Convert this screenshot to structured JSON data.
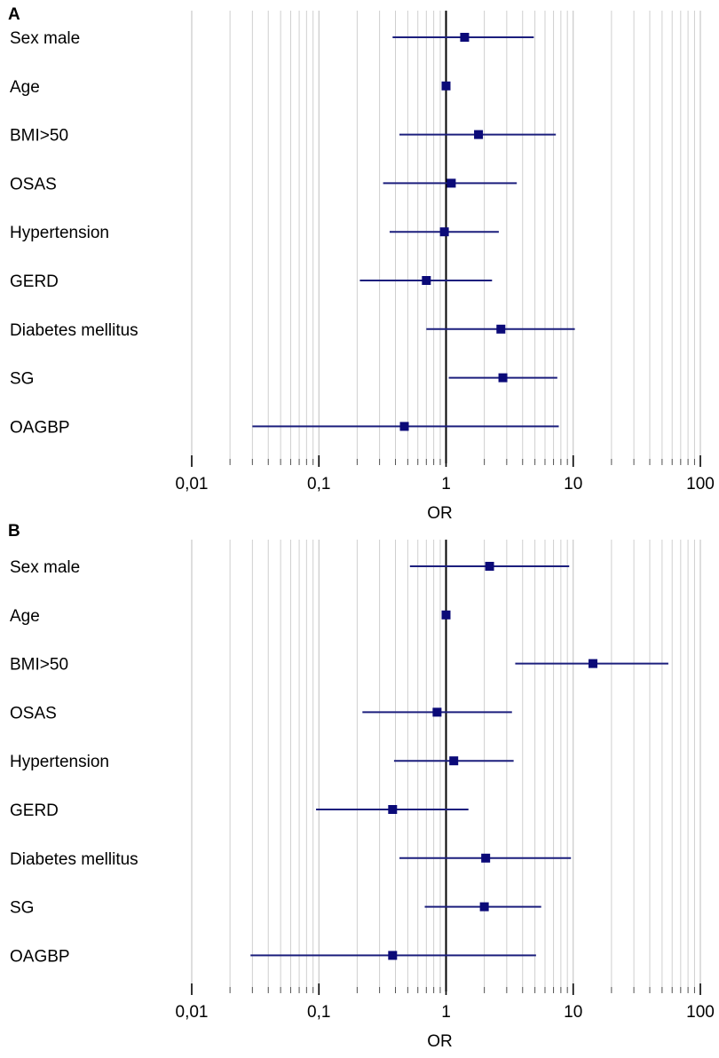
{
  "colors": {
    "marker": "#0b0a78",
    "ci_line": "#1c1f7d",
    "grid": "#cfcfcf",
    "ref_line": "#000000",
    "axis": "#000000"
  },
  "chart_data": [
    {
      "type": "forest",
      "panel": "A",
      "xscale": "log",
      "xlim": [
        0.01,
        100
      ],
      "xlabel": "OR",
      "xticks": [
        0.01,
        0.1,
        1,
        10,
        100
      ],
      "xtick_labels": [
        "0,01",
        "0,1",
        "1",
        "10",
        "100"
      ],
      "reference_line": 1,
      "grid": true,
      "rows": [
        {
          "label": "Sex male",
          "or": 1.4,
          "lower": 0.38,
          "upper": 4.9
        },
        {
          "label": "Age",
          "or": 1.0,
          "lower": 0.98,
          "upper": 1.03
        },
        {
          "label": "BMI>50",
          "or": 1.8,
          "lower": 0.43,
          "upper": 7.3
        },
        {
          "label": "OSAS",
          "or": 1.1,
          "lower": 0.32,
          "upper": 3.6
        },
        {
          "label": "Hypertension",
          "or": 0.97,
          "lower": 0.36,
          "upper": 2.6
        },
        {
          "label": "GERD",
          "or": 0.7,
          "lower": 0.21,
          "upper": 2.3
        },
        {
          "label": "Diabetes mellitus",
          "or": 2.7,
          "lower": 0.7,
          "upper": 10.3
        },
        {
          "label": "SG",
          "or": 2.8,
          "lower": 1.05,
          "upper": 7.5
        },
        {
          "label": "OAGBP",
          "or": 0.47,
          "lower": 0.03,
          "upper": 7.7
        }
      ]
    },
    {
      "type": "forest",
      "panel": "B",
      "xscale": "log",
      "xlim": [
        0.01,
        100
      ],
      "xlabel": "OR",
      "xticks": [
        0.01,
        0.1,
        1,
        10,
        100
      ],
      "xtick_labels": [
        "0,01",
        "0,1",
        "1",
        "10",
        "100"
      ],
      "reference_line": 1,
      "grid": true,
      "rows": [
        {
          "label": "Sex male",
          "or": 2.2,
          "lower": 0.52,
          "upper": 9.3
        },
        {
          "label": "Age",
          "or": 1.0,
          "lower": 0.98,
          "upper": 1.03
        },
        {
          "label": "BMI>50",
          "or": 14.3,
          "lower": 3.5,
          "upper": 56
        },
        {
          "label": "OSAS",
          "or": 0.85,
          "lower": 0.22,
          "upper": 3.3
        },
        {
          "label": "Hypertension",
          "or": 1.15,
          "lower": 0.39,
          "upper": 3.4
        },
        {
          "label": "GERD",
          "or": 0.38,
          "lower": 0.095,
          "upper": 1.5
        },
        {
          "label": "Diabetes mellitus",
          "or": 2.05,
          "lower": 0.43,
          "upper": 9.6
        },
        {
          "label": "SG",
          "or": 2.0,
          "lower": 0.68,
          "upper": 5.6
        },
        {
          "label": "OAGBP",
          "or": 0.38,
          "lower": 0.029,
          "upper": 5.1
        }
      ]
    }
  ]
}
